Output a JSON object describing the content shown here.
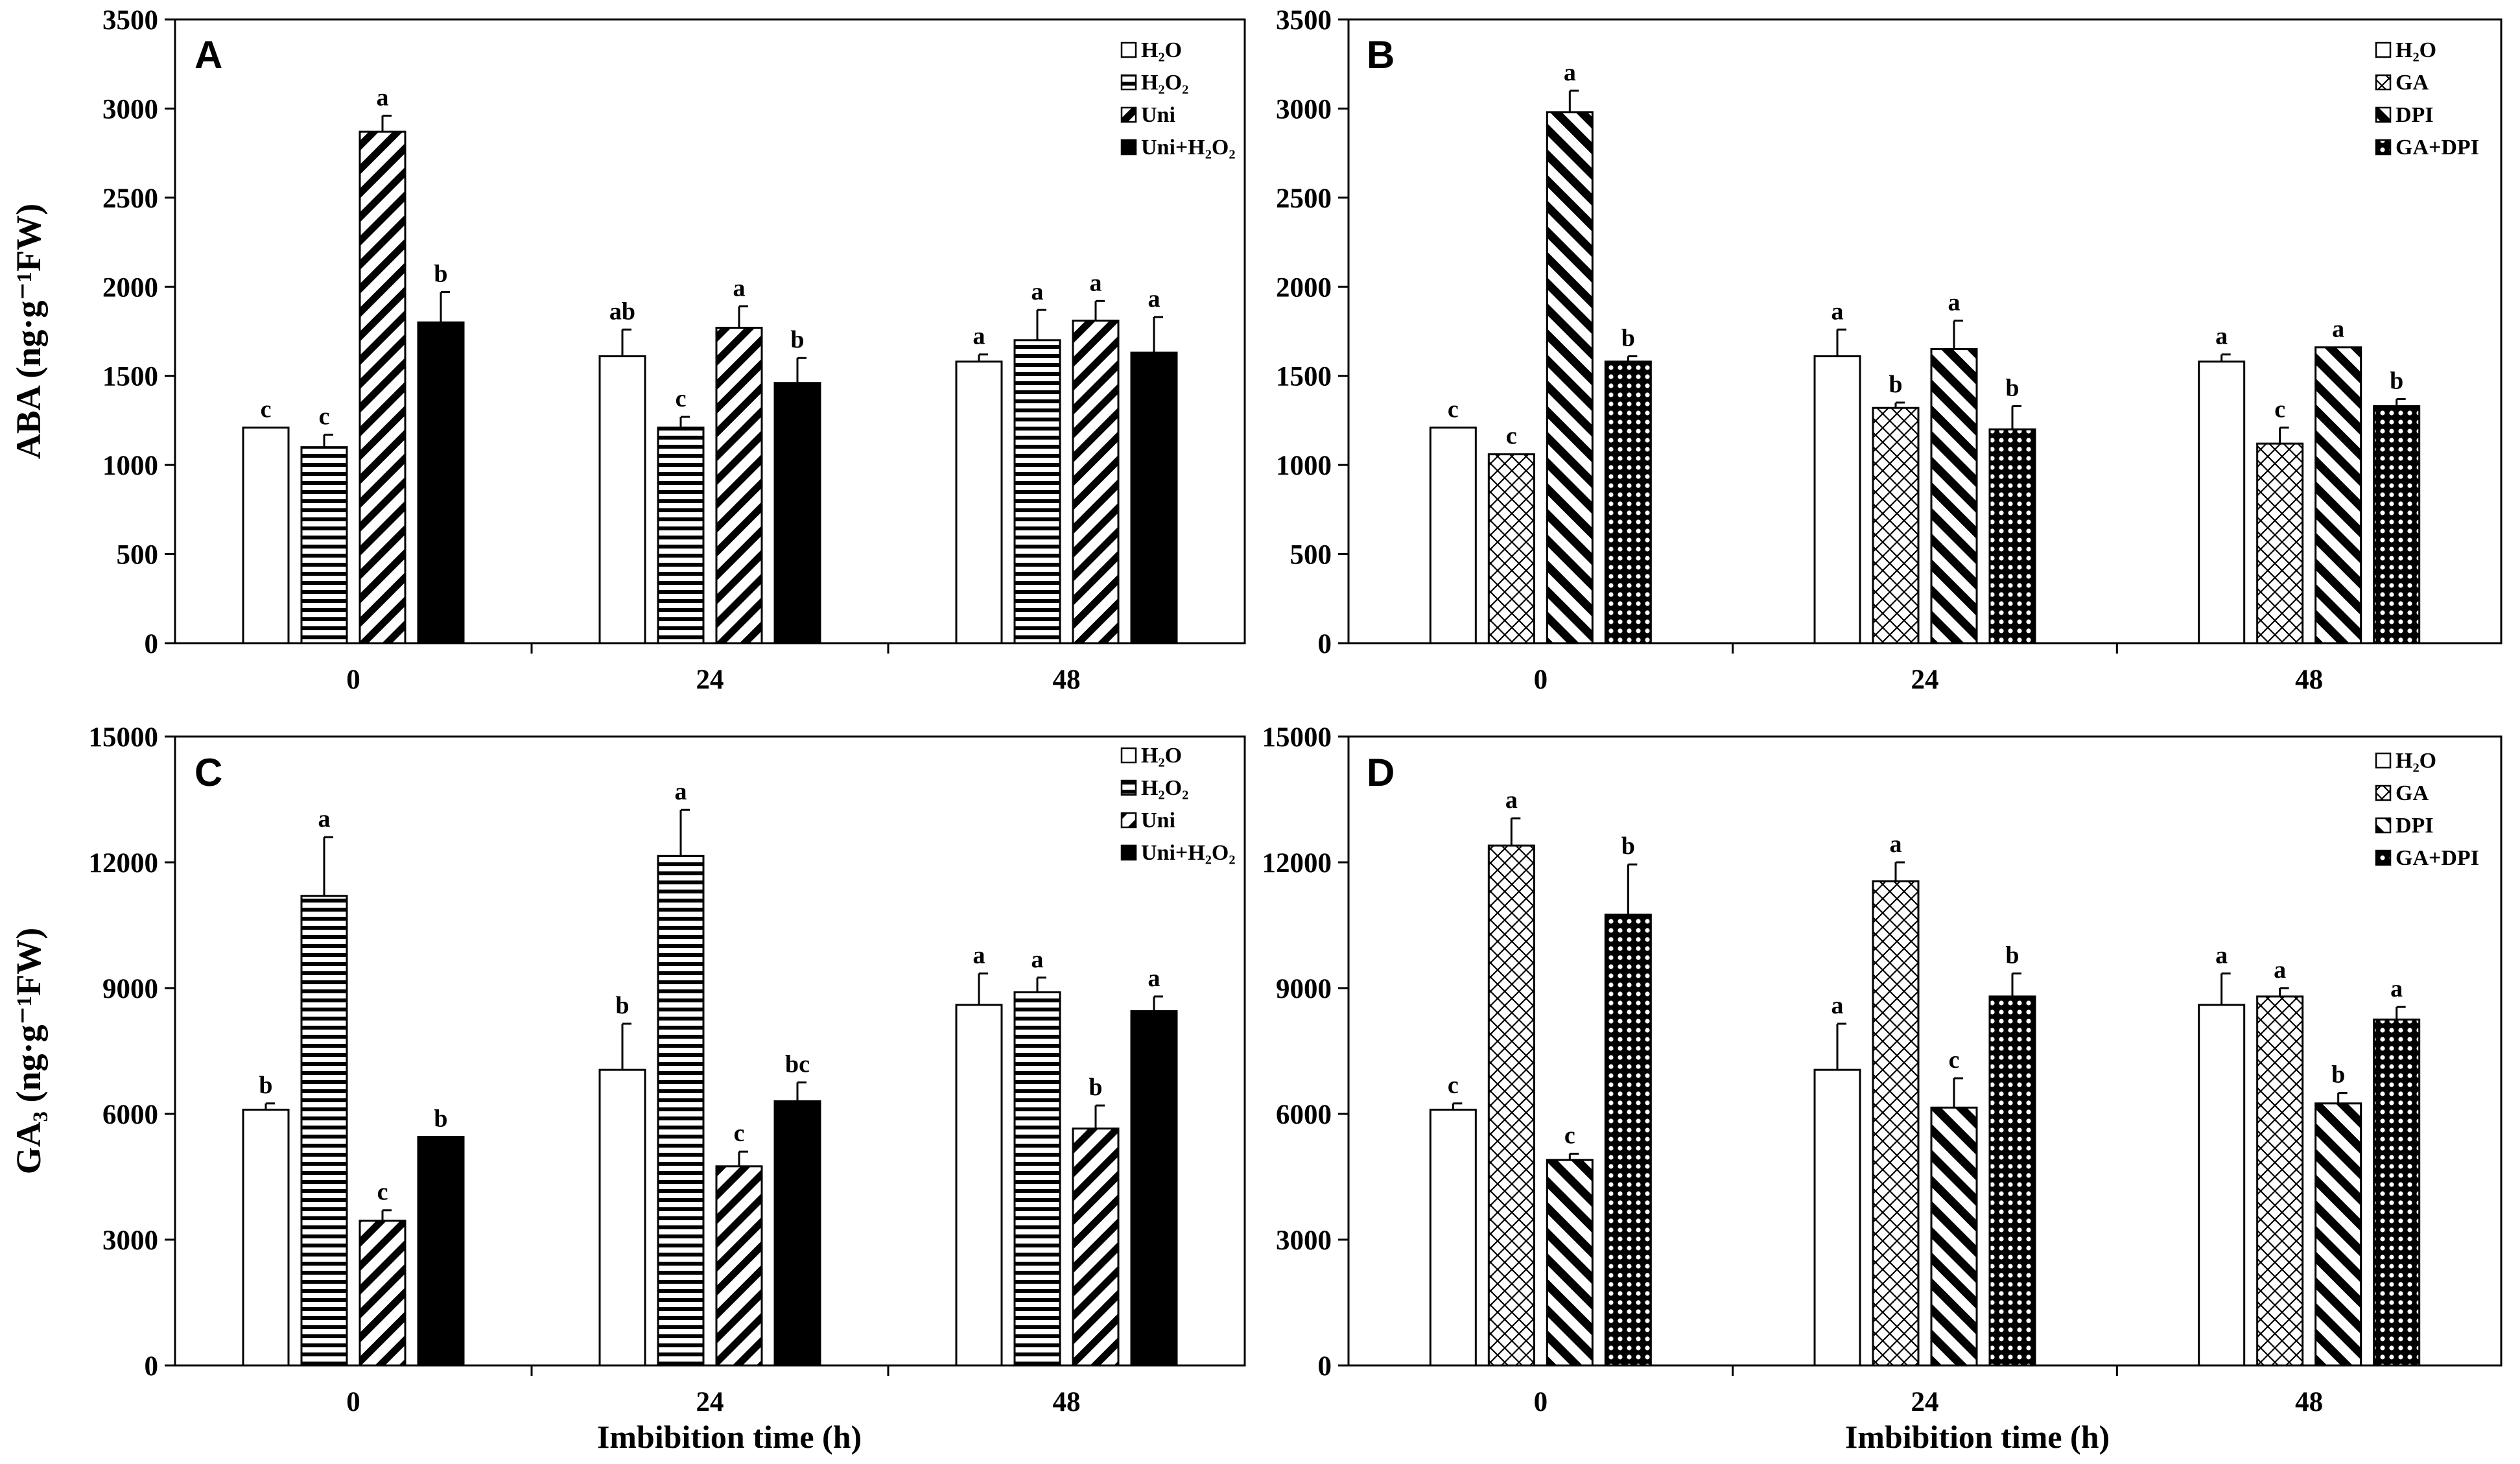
{
  "figure": {
    "x_axis_title": "Imbibition time (h)"
  },
  "chart_data": [
    {
      "type": "bar",
      "panel": "A",
      "ylabel": "ABA (ng·g⁻¹FW)",
      "ylim": [
        0,
        3500
      ],
      "yticks": [
        0,
        500,
        1000,
        1500,
        2000,
        2500,
        3000,
        3500
      ],
      "categories": [
        "0",
        "24",
        "48"
      ],
      "legend_position": "top-right",
      "series": [
        {
          "name": "H₂O",
          "pattern": "white",
          "values": [
            1210,
            1610,
            1580
          ],
          "errors": [
            0,
            150,
            40
          ],
          "labels": [
            "c",
            "ab",
            "a"
          ]
        },
        {
          "name": "H₂O₂",
          "pattern": "hlines",
          "values": [
            1100,
            1210,
            1700
          ],
          "errors": [
            70,
            60,
            170
          ],
          "labels": [
            "c",
            "c",
            "a"
          ]
        },
        {
          "name": "Uni",
          "pattern": "diag-right",
          "values": [
            2870,
            1770,
            1810
          ],
          "errors": [
            90,
            120,
            110
          ],
          "labels": [
            "a",
            "a",
            "a"
          ]
        },
        {
          "name": "Uni+H₂O₂",
          "pattern": "black",
          "values": [
            1800,
            1460,
            1630
          ],
          "errors": [
            170,
            140,
            200
          ],
          "labels": [
            "b",
            "b",
            "a"
          ]
        }
      ]
    },
    {
      "type": "bar",
      "panel": "B",
      "ylabel": "",
      "ylim": [
        0,
        3500
      ],
      "yticks": [
        0,
        500,
        1000,
        1500,
        2000,
        2500,
        3000,
        3500
      ],
      "categories": [
        "0",
        "24",
        "48"
      ],
      "legend_position": "top-right",
      "series": [
        {
          "name": "H₂O",
          "pattern": "white",
          "values": [
            1210,
            1610,
            1580
          ],
          "errors": [
            0,
            150,
            40
          ],
          "labels": [
            "c",
            "a",
            "a"
          ]
        },
        {
          "name": "GA",
          "pattern": "crosshatch",
          "values": [
            1060,
            1320,
            1120
          ],
          "errors": [
            0,
            30,
            90
          ],
          "labels": [
            "c",
            "b",
            "c"
          ]
        },
        {
          "name": "DPI",
          "pattern": "diag-left",
          "values": [
            2980,
            1650,
            1660
          ],
          "errors": [
            120,
            160,
            0
          ],
          "labels": [
            "a",
            "a",
            "a"
          ]
        },
        {
          "name": "GA+DPI",
          "pattern": "dots",
          "values": [
            1580,
            1200,
            1330
          ],
          "errors": [
            30,
            130,
            40
          ],
          "labels": [
            "b",
            "b",
            "b"
          ]
        }
      ]
    },
    {
      "type": "bar",
      "panel": "C",
      "ylabel": "GA₃ (ng·g⁻¹FW)",
      "ylim": [
        0,
        15000
      ],
      "yticks": [
        0,
        3000,
        6000,
        9000,
        12000,
        15000
      ],
      "categories": [
        "0",
        "24",
        "48"
      ],
      "legend_position": "top-right",
      "series": [
        {
          "name": "H₂O",
          "pattern": "white",
          "values": [
            6100,
            7050,
            8600
          ],
          "errors": [
            150,
            1100,
            750
          ],
          "labels": [
            "b",
            "b",
            "a"
          ]
        },
        {
          "name": "H₂O₂",
          "pattern": "hlines",
          "values": [
            11200,
            12150,
            8900
          ],
          "errors": [
            1400,
            1100,
            350
          ],
          "labels": [
            "a",
            "a",
            "a"
          ]
        },
        {
          "name": "Uni",
          "pattern": "diag-right",
          "values": [
            3450,
            4750,
            5650
          ],
          "errors": [
            250,
            350,
            550
          ],
          "labels": [
            "c",
            "c",
            "b"
          ]
        },
        {
          "name": "Uni+H₂O₂",
          "pattern": "black",
          "values": [
            5450,
            6300,
            8450
          ],
          "errors": [
            0,
            450,
            350
          ],
          "labels": [
            "b",
            "bc",
            "a"
          ]
        }
      ]
    },
    {
      "type": "bar",
      "panel": "D",
      "ylabel": "",
      "ylim": [
        0,
        15000
      ],
      "yticks": [
        0,
        3000,
        6000,
        9000,
        12000,
        15000
      ],
      "categories": [
        "0",
        "24",
        "48"
      ],
      "legend_position": "top-right",
      "series": [
        {
          "name": "H₂O",
          "pattern": "white",
          "values": [
            6100,
            7050,
            8600
          ],
          "errors": [
            150,
            1100,
            750
          ],
          "labels": [
            "c",
            "a",
            "a"
          ]
        },
        {
          "name": "GA",
          "pattern": "crosshatch",
          "values": [
            12400,
            11550,
            8800
          ],
          "errors": [
            650,
            450,
            200
          ],
          "labels": [
            "a",
            "a",
            "a"
          ]
        },
        {
          "name": "DPI",
          "pattern": "diag-left",
          "values": [
            4900,
            6150,
            6250
          ],
          "errors": [
            150,
            700,
            250
          ],
          "labels": [
            "c",
            "c",
            "b"
          ]
        },
        {
          "name": "GA+DPI",
          "pattern": "dots",
          "values": [
            10750,
            8800,
            8250
          ],
          "errors": [
            1200,
            550,
            300
          ],
          "labels": [
            "b",
            "b",
            "a"
          ]
        }
      ]
    }
  ]
}
